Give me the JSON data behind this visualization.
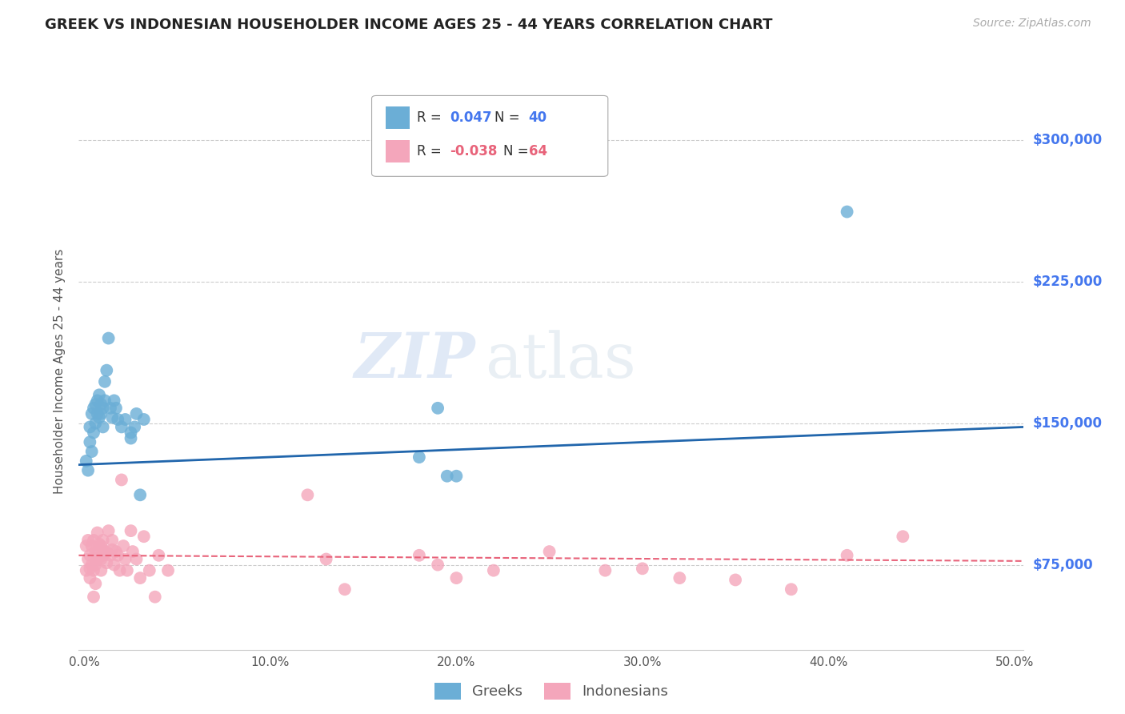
{
  "title": "GREEK VS INDONESIAN HOUSEHOLDER INCOME AGES 25 - 44 YEARS CORRELATION CHART",
  "source": "Source: ZipAtlas.com",
  "ylabel": "Householder Income Ages 25 - 44 years",
  "xlabel_ticks": [
    "0.0%",
    "10.0%",
    "20.0%",
    "30.0%",
    "40.0%",
    "50.0%"
  ],
  "xlabel_vals": [
    0.0,
    0.1,
    0.2,
    0.3,
    0.4,
    0.5
  ],
  "ylabel_ticks": [
    "$75,000",
    "$150,000",
    "$225,000",
    "$300,000"
  ],
  "ylabel_vals": [
    75000,
    150000,
    225000,
    300000
  ],
  "ylim": [
    30000,
    325000
  ],
  "xlim": [
    -0.003,
    0.505
  ],
  "watermark_zip": "ZIP",
  "watermark_atlas": "atlas",
  "legend_r1": "R = ",
  "legend_v1": " 0.047",
  "legend_n1": "  N = ",
  "legend_nv1": "40",
  "legend_r2": "R = ",
  "legend_v2": "-0.038",
  "legend_n2": "  N = ",
  "legend_nv2": "64",
  "greek_color": "#6baed6",
  "indo_color": "#f4a6bb",
  "greek_line_color": "#2166ac",
  "indo_line_color": "#e8637a",
  "background_color": "#ffffff",
  "grid_color": "#cccccc",
  "greek_x": [
    0.001,
    0.002,
    0.003,
    0.003,
    0.004,
    0.004,
    0.005,
    0.005,
    0.006,
    0.006,
    0.007,
    0.007,
    0.008,
    0.008,
    0.009,
    0.009,
    0.01,
    0.01,
    0.011,
    0.011,
    0.012,
    0.013,
    0.014,
    0.015,
    0.016,
    0.017,
    0.018,
    0.02,
    0.022,
    0.025,
    0.028,
    0.03,
    0.18,
    0.19,
    0.195,
    0.2,
    0.025,
    0.027,
    0.032,
    0.41
  ],
  "greek_y": [
    130000,
    125000,
    140000,
    148000,
    135000,
    155000,
    145000,
    158000,
    150000,
    160000,
    155000,
    162000,
    153000,
    165000,
    160000,
    155000,
    158000,
    148000,
    162000,
    172000,
    178000,
    195000,
    158000,
    153000,
    162000,
    158000,
    152000,
    148000,
    152000,
    145000,
    155000,
    112000,
    132000,
    158000,
    122000,
    122000,
    142000,
    148000,
    152000,
    262000
  ],
  "indo_x": [
    0.001,
    0.001,
    0.002,
    0.002,
    0.003,
    0.003,
    0.003,
    0.004,
    0.004,
    0.005,
    0.005,
    0.006,
    0.006,
    0.007,
    0.007,
    0.007,
    0.008,
    0.008,
    0.009,
    0.009,
    0.009,
    0.01,
    0.01,
    0.011,
    0.012,
    0.012,
    0.013,
    0.014,
    0.015,
    0.015,
    0.016,
    0.017,
    0.018,
    0.019,
    0.02,
    0.021,
    0.022,
    0.023,
    0.025,
    0.026,
    0.028,
    0.03,
    0.032,
    0.035,
    0.038,
    0.04,
    0.045,
    0.12,
    0.13,
    0.14,
    0.18,
    0.19,
    0.2,
    0.22,
    0.25,
    0.28,
    0.3,
    0.32,
    0.35,
    0.38,
    0.41,
    0.44,
    0.005,
    0.006
  ],
  "indo_y": [
    85000,
    72000,
    78000,
    88000,
    73000,
    68000,
    80000,
    75000,
    85000,
    72000,
    88000,
    75000,
    82000,
    78000,
    92000,
    82000,
    79000,
    86000,
    72000,
    78000,
    85000,
    88000,
    80000,
    82000,
    82000,
    76000,
    93000,
    80000,
    83000,
    88000,
    75000,
    82000,
    80000,
    72000,
    120000,
    85000,
    78000,
    72000,
    93000,
    82000,
    78000,
    68000,
    90000,
    72000,
    58000,
    80000,
    72000,
    112000,
    78000,
    62000,
    80000,
    75000,
    68000,
    72000,
    82000,
    72000,
    73000,
    68000,
    67000,
    62000,
    80000,
    90000,
    58000,
    65000
  ]
}
